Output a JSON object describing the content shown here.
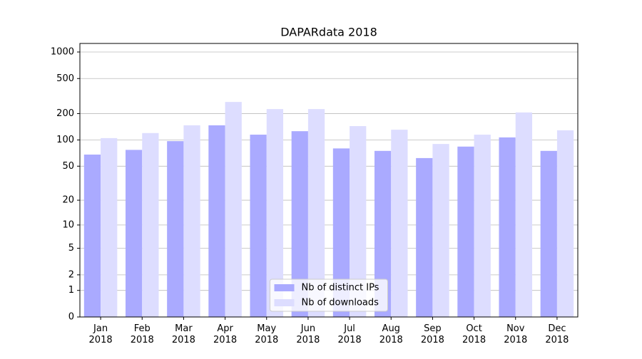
{
  "chart_data": {
    "type": "bar",
    "title": "DAPARdata 2018",
    "categories": [
      "Jan\n2018",
      "Feb\n2018",
      "Mar\n2018",
      "Apr\n2018",
      "May\n2018",
      "Jun\n2018",
      "Jul\n2018",
      "Aug\n2018",
      "Sep\n2018",
      "Oct\n2018",
      "Nov\n2018",
      "Dec\n2018"
    ],
    "series": [
      {
        "name": "Nb of distinct IPs",
        "color": "#aaaaff",
        "values": [
          68,
          77,
          97,
          147,
          115,
          126,
          80,
          75,
          62,
          84,
          107,
          75
        ]
      },
      {
        "name": "Nb of downloads",
        "color": "#ddddff",
        "values": [
          105,
          120,
          147,
          271,
          225,
          225,
          144,
          131,
          90,
          115,
          206,
          129
        ]
      }
    ],
    "yscale": "symlog",
    "ylim": [
      0,
      1250
    ],
    "yticks": [
      0,
      1,
      2,
      5,
      10,
      20,
      50,
      100,
      200,
      500,
      1000
    ],
    "grid": true,
    "legend": "lower center"
  }
}
